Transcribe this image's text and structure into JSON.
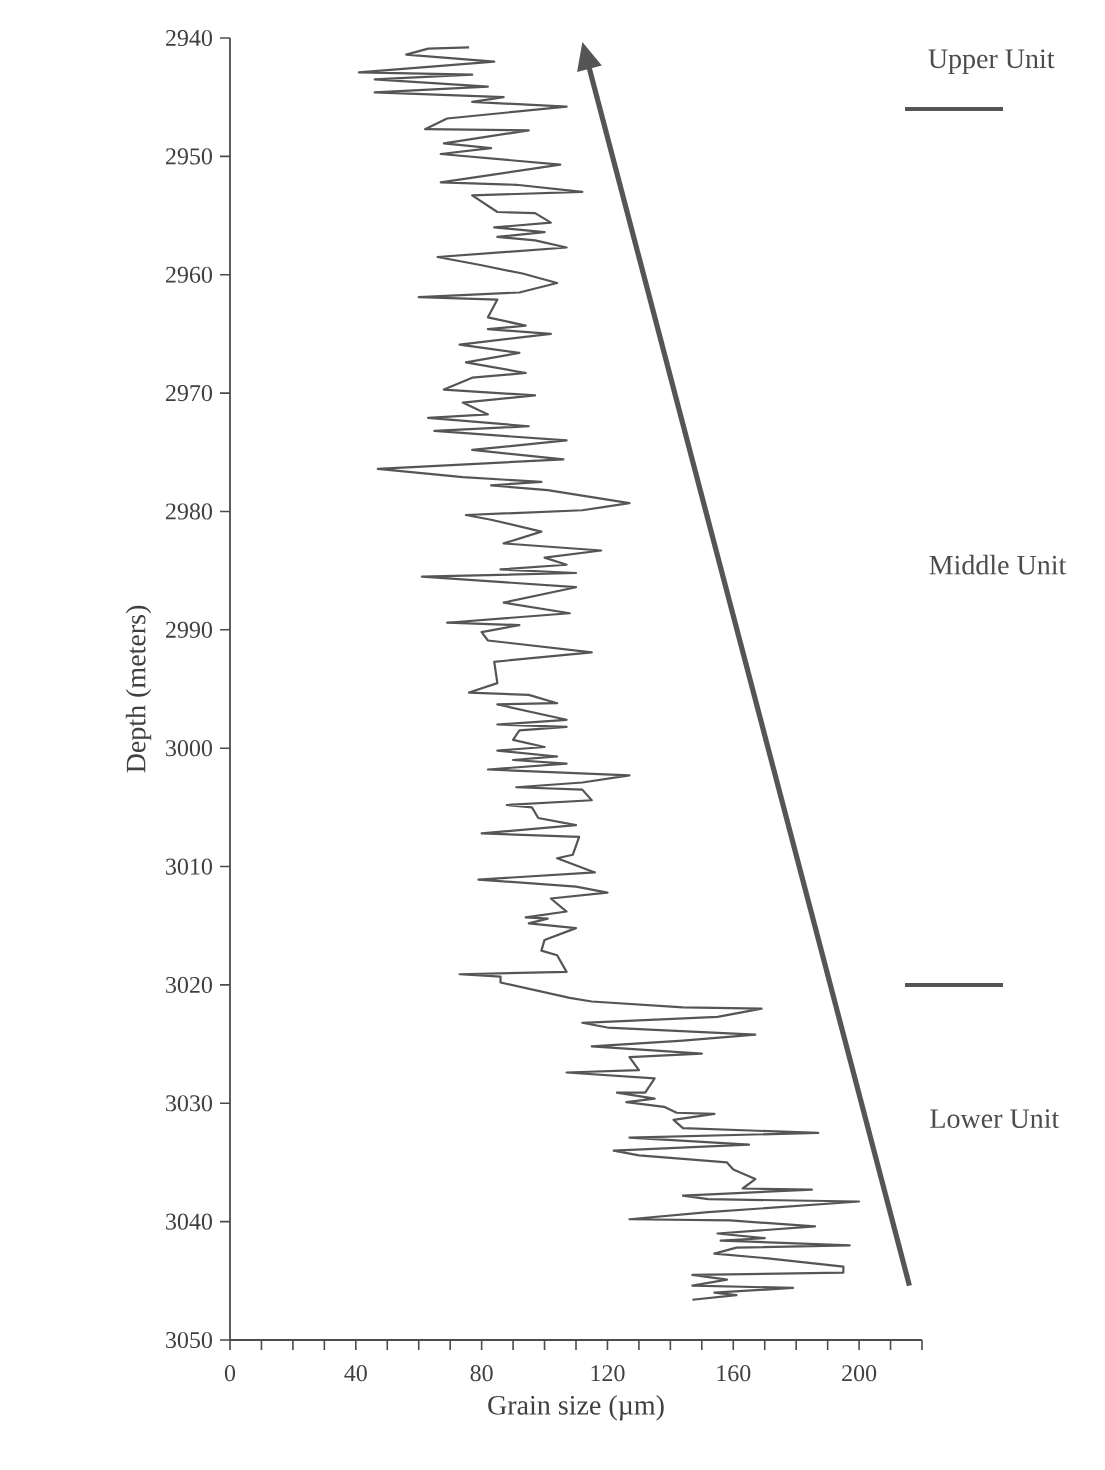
{
  "chart_data": {
    "type": "line",
    "xlabel": "Grain size (µm)",
    "ylabel": "Depth (meters)",
    "x": [
      76,
      63,
      56,
      84,
      41,
      77,
      46,
      82,
      46,
      87,
      77,
      107,
      69,
      62,
      95,
      68,
      83,
      67,
      105,
      67,
      91,
      112,
      77,
      85,
      97,
      102,
      84,
      100,
      85,
      97,
      107,
      66,
      80,
      93,
      104,
      92,
      60,
      85,
      82,
      94,
      82,
      102,
      73,
      92,
      75,
      94,
      77,
      68,
      97,
      74,
      82,
      63,
      95,
      65,
      107,
      77,
      106,
      47,
      74,
      99,
      83,
      101,
      127,
      112,
      75,
      83,
      99,
      87,
      118,
      100,
      107,
      86,
      110,
      61,
      110,
      87,
      108,
      69,
      92,
      80,
      82,
      115,
      84,
      85,
      76,
      95,
      104,
      85,
      107,
      85,
      107,
      92,
      90,
      100,
      85,
      104,
      90,
      107,
      82,
      127,
      112,
      91,
      112,
      115,
      88,
      96,
      98,
      110,
      80,
      111,
      109,
      104,
      116,
      79,
      110,
      120,
      102,
      107,
      94,
      101,
      95,
      110,
      100,
      99,
      104,
      107,
      73,
      86,
      86,
      108,
      115,
      144,
      169,
      155,
      112,
      120,
      167,
      144,
      115,
      150,
      127,
      130,
      107,
      135,
      132,
      123,
      135,
      126,
      138,
      142,
      154,
      141,
      144,
      187,
      127,
      165,
      122,
      130,
      158,
      160,
      167,
      163,
      185,
      144,
      152,
      200,
      152,
      127,
      159,
      186,
      155,
      170,
      156,
      197,
      161,
      154,
      171,
      195,
      195,
      147,
      158,
      147,
      179,
      154,
      161,
      147
    ],
    "values": [
      2940.8,
      2940.9,
      2941.4,
      2942.0,
      2942.9,
      2943.1,
      2943.5,
      2944.1,
      2944.6,
      2945.0,
      2945.4,
      2945.8,
      2946.8,
      2947.7,
      2947.8,
      2948.9,
      2949.3,
      2949.8,
      2950.7,
      2952.2,
      2952.4,
      2953.0,
      2953.3,
      2954.7,
      2954.8,
      2955.6,
      2956.0,
      2956.4,
      2956.8,
      2957.1,
      2957.7,
      2958.5,
      2959.2,
      2959.9,
      2960.7,
      2961.5,
      2961.9,
      2962.1,
      2963.6,
      2964.3,
      2964.6,
      2965.0,
      2965.9,
      2966.6,
      2967.4,
      2968.3,
      2968.7,
      2969.7,
      2970.2,
      2970.8,
      2971.8,
      2972.1,
      2972.8,
      2973.2,
      2974.0,
      2974.8,
      2975.6,
      2976.4,
      2977.1,
      2977.5,
      2977.8,
      2978.2,
      2979.3,
      2979.9,
      2980.3,
      2980.7,
      2981.7,
      2982.7,
      2983.3,
      2983.9,
      2984.5,
      2984.9,
      2985.2,
      2985.5,
      2986.4,
      2987.7,
      2988.6,
      2989.4,
      2989.6,
      2990.2,
      2990.9,
      2991.9,
      2992.7,
      2994.5,
      2995.3,
      2995.5,
      2996.2,
      2996.3,
      2997.6,
      2998.0,
      2998.2,
      2998.5,
      2999.3,
      2999.9,
      3000.2,
      3000.7,
      3001.0,
      3001.3,
      3001.8,
      3002.3,
      3002.9,
      3003.3,
      3003.5,
      3004.4,
      3004.8,
      3005.0,
      3005.9,
      3006.5,
      3007.2,
      3007.5,
      3009.0,
      3009.3,
      3010.5,
      3011.1,
      3011.7,
      3012.2,
      3012.7,
      3013.8,
      3014.3,
      3014.4,
      3014.8,
      3015.2,
      3016.2,
      3017.1,
      3017.5,
      3018.9,
      3019.1,
      3019.3,
      3019.8,
      3021.1,
      3021.4,
      3021.9,
      3022.0,
      3022.7,
      3023.2,
      3023.6,
      3024.2,
      3024.7,
      3025.2,
      3025.8,
      3026.1,
      3027.2,
      3027.4,
      3027.9,
      3029.1,
      3029.1,
      3029.6,
      3029.9,
      3030.3,
      3030.8,
      3030.9,
      3031.4,
      3032.1,
      3032.5,
      3032.9,
      3033.5,
      3034.0,
      3034.4,
      3035.0,
      3035.6,
      3036.4,
      3037.2,
      3037.3,
      3037.8,
      3038.1,
      3038.3,
      3039.2,
      3039.8,
      3039.9,
      3040.4,
      3041.0,
      3041.4,
      3041.6,
      3042.0,
      3042.2,
      3042.7,
      3043.1,
      3043.8,
      3044.3,
      3044.5,
      3044.9,
      3045.4,
      3045.6,
      3046.0,
      3046.2,
      3046.6
    ],
    "color": "#555555",
    "xlim": [
      0,
      220
    ],
    "xticks": [
      0,
      {
        "value": 10,
        "label": null
      },
      {
        "value": 20,
        "label": null
      },
      {
        "value": 30,
        "label": null
      },
      40,
      {
        "value": 50,
        "label": null
      },
      {
        "value": 60,
        "label": null
      },
      {
        "value": 70,
        "label": null
      },
      80,
      {
        "value": 90,
        "label": null
      },
      {
        "value": 100,
        "label": null
      },
      {
        "value": 110,
        "label": null
      },
      120,
      {
        "value": 130,
        "label": null
      },
      {
        "value": 140,
        "label": null
      },
      {
        "value": 150,
        "label": null
      },
      160,
      {
        "value": 170,
        "label": null
      },
      {
        "value": 180,
        "label": null
      },
      {
        "value": 190,
        "label": null
      },
      200,
      {
        "value": 210,
        "label": null
      },
      {
        "value": 220,
        "label": null
      }
    ],
    "ylim": [
      3050,
      2940
    ],
    "yticks": [
      2940,
      2950,
      2960,
      2970,
      2980,
      2990,
      3000,
      3010,
      3020,
      3030,
      3040,
      3050
    ],
    "annotations": [
      "Upper Unit",
      "Middle Unit",
      "Lower Unit"
    ],
    "grid": false,
    "marker": "none",
    "line_style": "solid"
  }
}
